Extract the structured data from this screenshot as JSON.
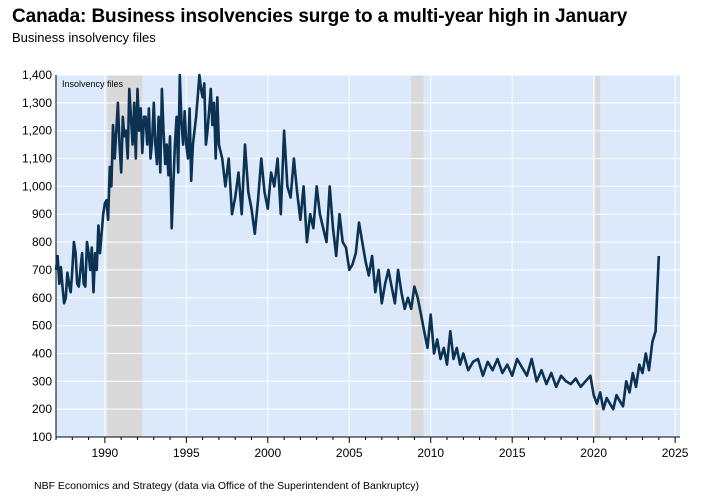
{
  "header": {
    "title": "Canada: Business insolvencies surge to a multi-year high in January",
    "subtitle": "Business insolvency files"
  },
  "footer": {
    "source": "NBF Economics and Strategy (data via Office of the Superintendent of Bankruptcy)"
  },
  "colors": {
    "plot_background": "#dce9fb",
    "recession_band": "#d9d9d9",
    "line": "#0b3153",
    "grid": "#ffffff",
    "axis": "#000000"
  },
  "chart_data": {
    "type": "line",
    "title": "Canada: Business insolvencies surge to a multi-year high in January",
    "subtitle": "Business insolvency files",
    "series_name": "Insolvency files",
    "xlabel": "",
    "ylabel": "",
    "xlim": [
      1987.0,
      2025.3
    ],
    "ylim": [
      100,
      1400
    ],
    "y_ticks": [
      100,
      200,
      300,
      400,
      500,
      600,
      700,
      800,
      900,
      1000,
      1100,
      1200,
      1300,
      1400
    ],
    "y_tick_labels": [
      "100",
      "200",
      "300",
      "400",
      "500",
      "600",
      "700",
      "800",
      "900",
      "1,000",
      "1,100",
      "1,200",
      "1,300",
      "1,400"
    ],
    "x_ticks": [
      1990,
      1995,
      2000,
      2005,
      2010,
      2015,
      2020,
      2025
    ],
    "x_tick_labels": [
      "1990",
      "1995",
      "2000",
      "2005",
      "2010",
      "2015",
      "2020",
      "2025"
    ],
    "grid": true,
    "recession_bands": [
      [
        1990.15,
        1992.3
      ],
      [
        2008.8,
        2009.55
      ],
      [
        2020.1,
        2020.4
      ]
    ],
    "series": [
      {
        "name": "Insolvency files",
        "x": [
          1987.0,
          1987.1,
          1987.2,
          1987.3,
          1987.4,
          1987.5,
          1987.6,
          1987.7,
          1987.8,
          1987.9,
          1988.0,
          1988.1,
          1988.2,
          1988.3,
          1988.4,
          1988.5,
          1988.6,
          1988.7,
          1988.8,
          1988.9,
          1989.0,
          1989.1,
          1989.2,
          1989.3,
          1989.4,
          1989.5,
          1989.6,
          1989.7,
          1989.8,
          1989.9,
          1990.0,
          1990.1,
          1990.2,
          1990.3,
          1990.4,
          1990.5,
          1990.6,
          1990.7,
          1990.8,
          1990.9,
          1991.0,
          1991.1,
          1991.2,
          1991.3,
          1991.4,
          1991.5,
          1991.6,
          1991.7,
          1991.8,
          1991.9,
          1992.0,
          1992.1,
          1992.2,
          1992.3,
          1992.4,
          1992.5,
          1992.6,
          1992.7,
          1992.8,
          1992.9,
          1993.0,
          1993.1,
          1993.2,
          1993.3,
          1993.4,
          1993.5,
          1993.6,
          1993.7,
          1993.8,
          1993.9,
          1994.0,
          1994.1,
          1994.2,
          1994.3,
          1994.4,
          1994.5,
          1994.6,
          1994.7,
          1994.8,
          1994.9,
          1995.0,
          1995.1,
          1995.2,
          1995.3,
          1995.4,
          1995.5,
          1995.6,
          1995.7,
          1995.8,
          1995.9,
          1996.0,
          1996.1,
          1996.2,
          1996.3,
          1996.4,
          1996.5,
          1996.6,
          1996.7,
          1996.8,
          1996.9,
          1997.0,
          1997.2,
          1997.4,
          1997.6,
          1997.8,
          1998.0,
          1998.2,
          1998.4,
          1998.6,
          1998.8,
          1999.0,
          1999.2,
          1999.4,
          1999.6,
          1999.8,
          2000.0,
          2000.2,
          2000.4,
          2000.6,
          2000.8,
          2001.0,
          2001.2,
          2001.4,
          2001.6,
          2001.8,
          2002.0,
          2002.2,
          2002.4,
          2002.6,
          2002.8,
          2003.0,
          2003.2,
          2003.4,
          2003.6,
          2003.8,
          2004.0,
          2004.2,
          2004.4,
          2004.6,
          2004.8,
          2005.0,
          2005.2,
          2005.4,
          2005.6,
          2005.8,
          2006.0,
          2006.2,
          2006.4,
          2006.6,
          2006.8,
          2007.0,
          2007.2,
          2007.4,
          2007.6,
          2007.8,
          2008.0,
          2008.2,
          2008.4,
          2008.6,
          2008.8,
          2009.0,
          2009.2,
          2009.4,
          2009.6,
          2009.8,
          2010.0,
          2010.2,
          2010.4,
          2010.6,
          2010.8,
          2011.0,
          2011.2,
          2011.4,
          2011.6,
          2011.8,
          2012.0,
          2012.3,
          2012.6,
          2012.9,
          2013.2,
          2013.5,
          2013.8,
          2014.1,
          2014.4,
          2014.7,
          2015.0,
          2015.3,
          2015.6,
          2015.9,
          2016.2,
          2016.5,
          2016.8,
          2017.1,
          2017.4,
          2017.7,
          2018.0,
          2018.3,
          2018.6,
          2018.9,
          2019.2,
          2019.5,
          2019.8,
          2020.0,
          2020.2,
          2020.4,
          2020.6,
          2020.8,
          2021.0,
          2021.2,
          2021.4,
          2021.6,
          2021.8,
          2022.0,
          2022.2,
          2022.4,
          2022.6,
          2022.8,
          2023.0,
          2023.2,
          2023.4,
          2023.6,
          2023.8,
          2023.9,
          2024.0
        ],
        "values": [
          700,
          750,
          650,
          710,
          640,
          580,
          600,
          690,
          650,
          620,
          700,
          800,
          760,
          650,
          640,
          700,
          760,
          650,
          640,
          800,
          760,
          700,
          780,
          620,
          760,
          700,
          860,
          760,
          830,
          900,
          940,
          950,
          880,
          1070,
          1000,
          1220,
          1100,
          1200,
          1300,
          1150,
          1050,
          1250,
          1180,
          1200,
          1100,
          1350,
          1250,
          1150,
          1300,
          1100,
          1350,
          1200,
          1280,
          1120,
          1250,
          1250,
          1150,
          1280,
          1100,
          1160,
          1300,
          1150,
          1080,
          1250,
          1050,
          1350,
          1200,
          1080,
          1150,
          1040,
          1180,
          850,
          1000,
          1150,
          1250,
          1050,
          1400,
          1230,
          1150,
          1270,
          1150,
          1100,
          1280,
          1020,
          1150,
          1200,
          1250,
          1320,
          1400,
          1350,
          1320,
          1370,
          1150,
          1200,
          1270,
          1350,
          1220,
          1300,
          1100,
          1320,
          1150,
          1100,
          1000,
          1100,
          900,
          960,
          1050,
          900,
          1150,
          980,
          920,
          830,
          950,
          1100,
          980,
          920,
          1050,
          1000,
          1100,
          900,
          1200,
          1000,
          960,
          1100,
          980,
          880,
          1000,
          800,
          900,
          850,
          1000,
          900,
          850,
          800,
          1000,
          850,
          750,
          900,
          800,
          780,
          700,
          720,
          760,
          870,
          800,
          730,
          680,
          750,
          620,
          700,
          580,
          650,
          700,
          640,
          580,
          700,
          620,
          560,
          600,
          560,
          640,
          600,
          540,
          480,
          420,
          540,
          400,
          450,
          380,
          420,
          360,
          480,
          380,
          420,
          360,
          400,
          340,
          370,
          380,
          320,
          370,
          340,
          380,
          330,
          360,
          320,
          380,
          350,
          320,
          380,
          300,
          340,
          290,
          330,
          280,
          320,
          300,
          290,
          310,
          280,
          300,
          320,
          250,
          220,
          260,
          200,
          240,
          220,
          200,
          250,
          230,
          210,
          300,
          260,
          330,
          280,
          360,
          330,
          400,
          340,
          440,
          480,
          620,
          750
        ]
      }
    ]
  }
}
